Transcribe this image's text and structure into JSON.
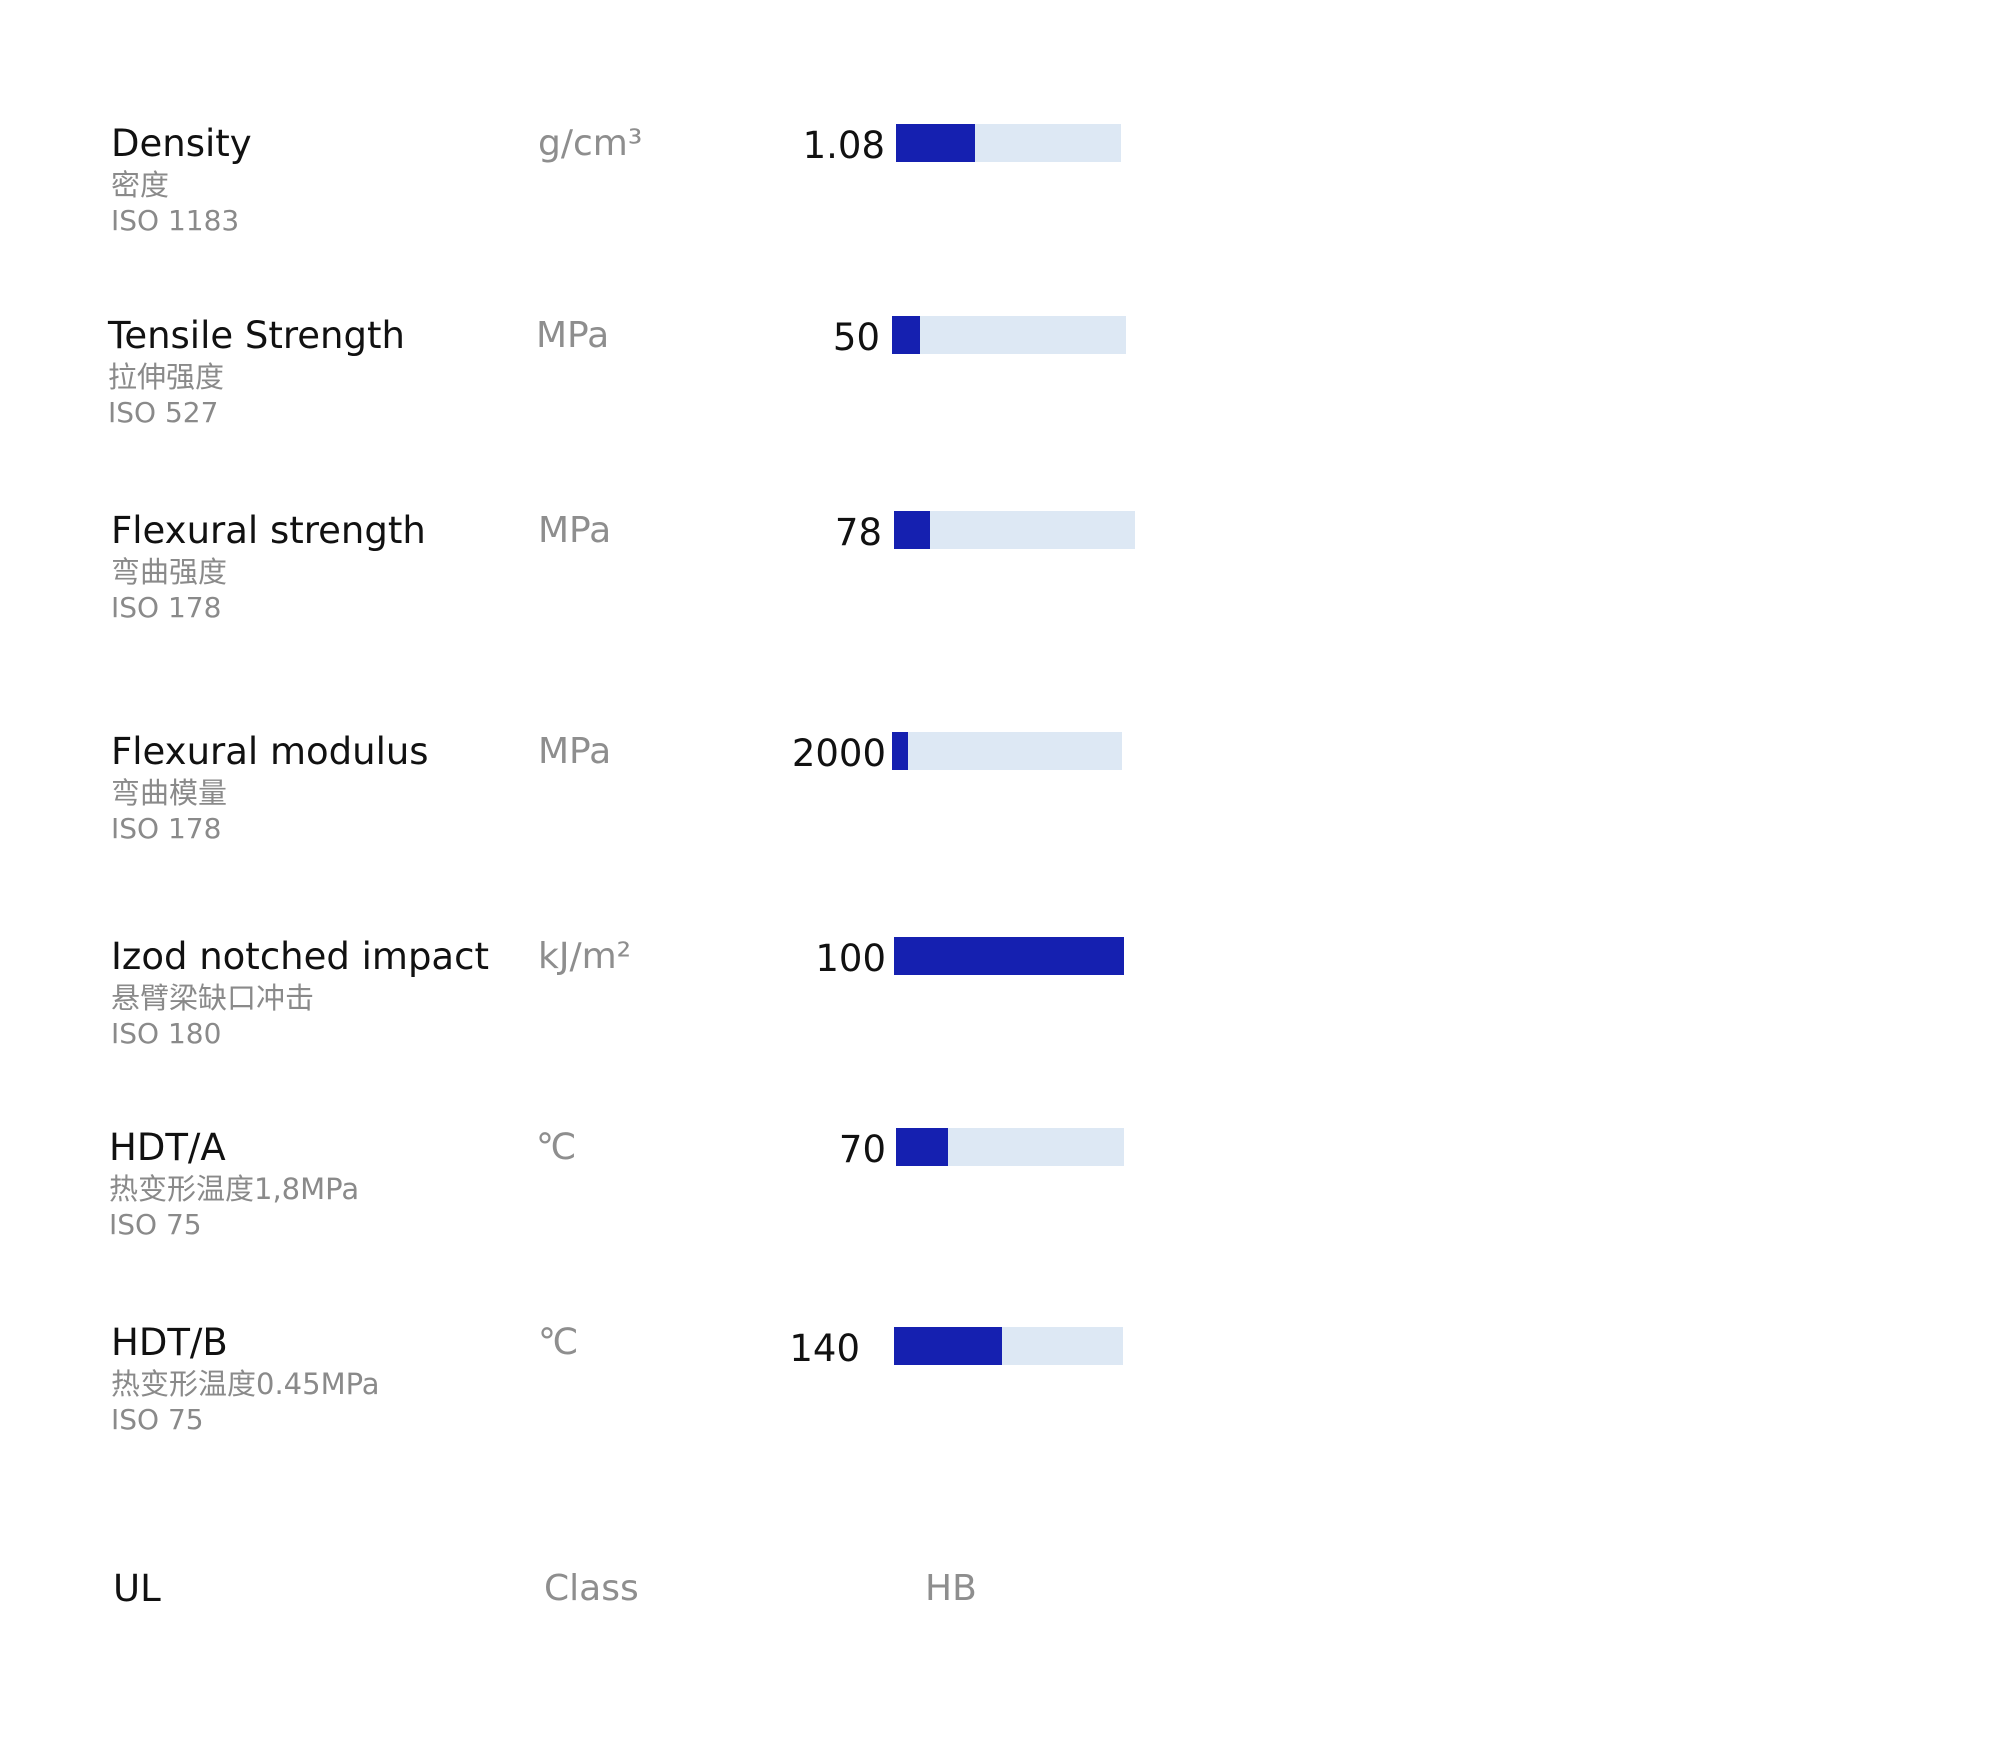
{
  "colors": {
    "bar_fill": "#1520b0",
    "bar_track": "#dde8f4"
  },
  "properties": [
    {
      "name": "Density",
      "cn": "密度",
      "standard": "ISO 1183",
      "unit": "g/cm³",
      "value": "1.08",
      "fill": 0.35
    },
    {
      "name": "Tensile Strength",
      "cn": "拉伸强度",
      "standard": "ISO 527",
      "unit": "MPa",
      "value": "50",
      "fill": 0.12
    },
    {
      "name": "Flexural strength",
      "cn": "弯曲强度",
      "standard": "ISO 178",
      "unit": "MPa",
      "value": "78",
      "fill": 0.15
    },
    {
      "name": "Flexural modulus",
      "cn": "弯曲模量",
      "standard": "ISO 178",
      "unit": "MPa",
      "value": "2000",
      "fill": 0.07
    },
    {
      "name": "Izod notched impact",
      "cn": "悬臂梁缺口冲击",
      "standard": "ISO 180",
      "unit": "kJ/m²",
      "value": "100",
      "fill": 1.0
    },
    {
      "name": "HDT/A",
      "cn": "热变形温度1,8MPa",
      "standard": "ISO 75",
      "unit": "℃",
      "value": "70",
      "fill": 0.23
    },
    {
      "name": "HDT/B",
      "cn": "热变形温度0.45MPa",
      "standard": "ISO 75",
      "unit": "℃",
      "value": "140",
      "fill": 0.47
    }
  ],
  "ul": {
    "name": "UL",
    "unit": "Class",
    "value": "HB"
  }
}
